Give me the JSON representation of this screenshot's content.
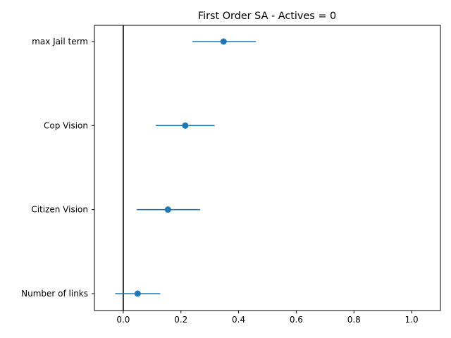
{
  "chart_data": {
    "type": "scatter",
    "title": "First Order SA - Actives = 0",
    "xlabel": "",
    "ylabel": "",
    "xlim": [
      -0.1,
      1.1
    ],
    "xticks": [
      0.0,
      0.2,
      0.4,
      0.6,
      0.8,
      1.0
    ],
    "xtick_labels": [
      "0.0",
      "0.2",
      "0.4",
      "0.6",
      "0.8",
      "1.0"
    ],
    "categories": [
      "Number of links",
      "Citizen Vision",
      "Cop Vision",
      "max Jail term"
    ],
    "series": [
      {
        "values": [
          0.05,
          0.155,
          0.215,
          0.348
        ],
        "error_low": [
          -0.028,
          0.047,
          0.113,
          0.24
        ],
        "error_high": [
          0.128,
          0.267,
          0.317,
          0.46
        ]
      }
    ],
    "reference_line_x": 0.0,
    "grid": false,
    "colors": {
      "series": "#1f77b4",
      "reference_line": "#000000"
    }
  }
}
